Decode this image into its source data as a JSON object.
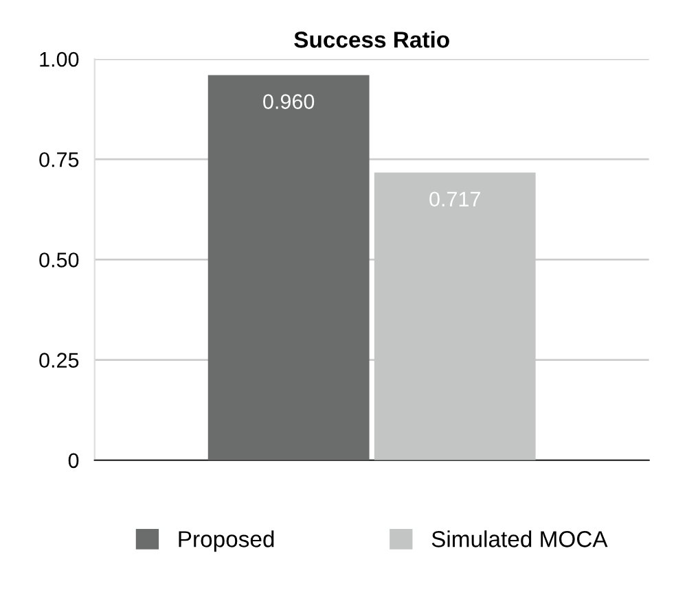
{
  "chart_data": {
    "type": "bar",
    "title": "Success Ratio",
    "categories": [
      null
    ],
    "series": [
      {
        "name": "Proposed",
        "color": "#6b6d6c",
        "values": [
          0.96
        ],
        "value_labels": [
          "0.960"
        ]
      },
      {
        "name": "Simulated MOCA",
        "color": "#c3c5c4",
        "values": [
          0.717
        ],
        "value_labels": [
          "0.717"
        ]
      }
    ],
    "ylim": [
      0,
      1.0
    ],
    "yticks": [
      {
        "value": 0,
        "label": "0"
      },
      {
        "value": 0.25,
        "label": "0.25"
      },
      {
        "value": 0.5,
        "label": "0.50"
      },
      {
        "value": 0.75,
        "label": "0.75"
      },
      {
        "value": 1.0,
        "label": "1.00"
      }
    ],
    "grid": "y",
    "legend": "bottom",
    "tick_labels": "y"
  }
}
